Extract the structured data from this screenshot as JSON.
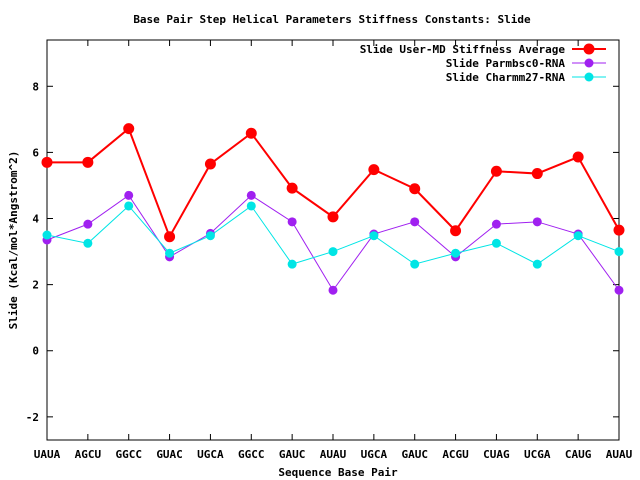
{
  "chart_data": {
    "type": "line",
    "title": "Base Pair Step Helical Parameters Stiffness Constants: Slide",
    "xlabel": "Sequence Base Pair",
    "ylabel": "Slide (Kcal/mol*Angstrom^2)",
    "categories": [
      "UAUA",
      "AGCU",
      "GGCC",
      "GUAC",
      "UGCA",
      "GGCC",
      "GAUC",
      "AUAU",
      "UGCA",
      "GAUC",
      "ACGU",
      "CUAG",
      "UCGA",
      "CAUG",
      "AUAU"
    ],
    "ylim": [
      -2.7,
      9.4
    ],
    "yticks": [
      -2,
      0,
      2,
      4,
      6,
      8
    ],
    "grid": false,
    "legend_position": "top-right",
    "series": [
      {
        "name": "Slide User-MD Stiffness Average",
        "color": "#ff0000",
        "values": [
          5.7,
          5.7,
          6.72,
          3.45,
          5.65,
          6.58,
          4.92,
          4.05,
          5.48,
          4.9,
          3.63,
          5.43,
          5.36,
          5.86,
          3.65
        ]
      },
      {
        "name": "Slide Parmbsc0-RNA",
        "color": "#a020f0",
        "values": [
          3.35,
          3.83,
          4.7,
          2.84,
          3.55,
          4.7,
          3.9,
          1.83,
          3.53,
          3.9,
          2.84,
          3.83,
          3.9,
          3.53,
          1.83
        ]
      },
      {
        "name": "Slide Charmm27-RNA",
        "color": "#00e5e5",
        "values": [
          3.5,
          3.25,
          4.38,
          2.95,
          3.48,
          4.38,
          2.62,
          3.0,
          3.48,
          2.62,
          2.95,
          3.25,
          2.62,
          3.48,
          3.0
        ]
      }
    ]
  }
}
